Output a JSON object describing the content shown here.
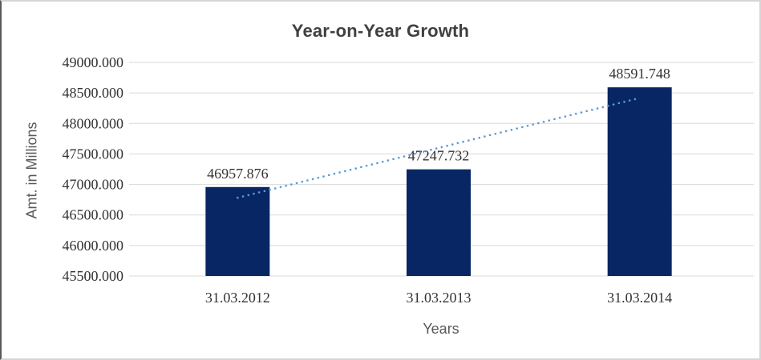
{
  "chart_data": {
    "type": "bar",
    "title": "Year-on-Year Growth",
    "xlabel": "Years",
    "ylabel": "Amt. in Millions",
    "categories": [
      "31.03.2012",
      "31.03.2013",
      "31.03.2014"
    ],
    "values": [
      46957.876,
      47247.732,
      48591.748
    ],
    "data_labels": [
      "46957.876",
      "47247.732",
      "48591.748"
    ],
    "ylim": [
      45500,
      49000
    ],
    "ytick_step": 500,
    "ytick_labels": [
      "45500.000",
      "46000.000",
      "46500.000",
      "47000.000",
      "47500.000",
      "48000.000",
      "48500.000",
      "49000.000"
    ],
    "grid": true,
    "legend": "none",
    "trendline": {
      "type": "linear",
      "style": "dotted",
      "color": "#5B9BD5"
    },
    "colors": {
      "bar": "#082664",
      "gridline": "#D9D9D9",
      "title": "#404040",
      "tick_label": "#333333",
      "axis_title": "#595959",
      "frame_border": "#D6D6D6"
    }
  }
}
